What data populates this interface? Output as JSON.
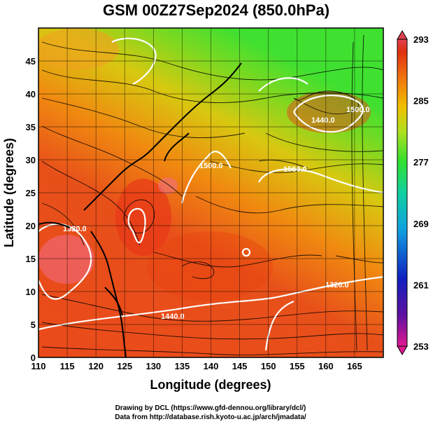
{
  "title": "GSM 00Z27Sep2024 (850.0hPa)",
  "xlabel": "Longitude (degrees)",
  "ylabel": "Latitude  (degrees)",
  "credits": [
    "Drawing by DCL (https://www.gfd-dennou.org/library/dcl/)",
    "Data from http://database.rish.kyoto-u.ac.jp/arch/jmadata/"
  ],
  "map": {
    "lon_range": [
      110,
      170
    ],
    "lat_range": [
      0,
      50
    ],
    "lon_ticks": [
      "110",
      "115",
      "120",
      "125",
      "130",
      "135",
      "140",
      "145",
      "150",
      "155",
      "160",
      "165"
    ],
    "lat_ticks": [
      "0",
      "5",
      "10",
      "15",
      "20",
      "25",
      "30",
      "35",
      "40",
      "45"
    ],
    "field": "temperature (K), shaded",
    "contour_field": "geopotential height (m), white contours",
    "vectors": "wind streamlines, black"
  },
  "colorbar": {
    "min": 253,
    "max": 293,
    "ticks": [
      "293",
      "285",
      "277",
      "269",
      "261",
      "253"
    ],
    "colors": [
      "#e01890",
      "#6010a0",
      "#1020c0",
      "#10a0e0",
      "#10d0a0",
      "#30e030",
      "#b0e020",
      "#f0c000",
      "#f07010",
      "#e03010",
      "#e04050"
    ]
  },
  "contour_labels": [
    "1320.0",
    "1440.0",
    "1500.0",
    "1320.0",
    "1440.0",
    "1500.0",
    "1560.0"
  ]
}
